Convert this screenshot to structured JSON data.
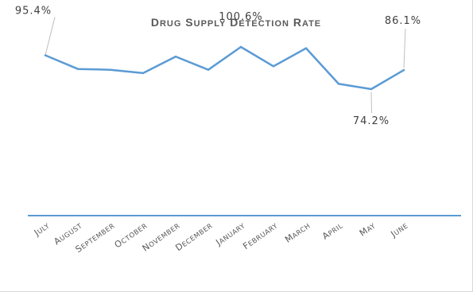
{
  "chart_data": {
    "type": "line",
    "title": "Drug Supply Detection Rate",
    "categories": [
      "July",
      "August",
      "September",
      "October",
      "November",
      "December",
      "January",
      "February",
      "March",
      "April",
      "May",
      "June"
    ],
    "series": [
      {
        "values": [
          95.4,
          86.8,
          86.3,
          84.2,
          94.6,
          86.3,
          100.6,
          88.5,
          99.8,
          77.5,
          74.2,
          86.1
        ],
        "color": "#5b9bd5"
      }
    ],
    "data_labels": [
      {
        "index": 0,
        "text": "95.4%"
      },
      {
        "index": 6,
        "text": "100.6%"
      },
      {
        "index": 10,
        "text": "74.2%"
      },
      {
        "index": 11,
        "text": "86.1%"
      }
    ],
    "ylim": [
      -5,
      130
    ],
    "grid": false,
    "legend": "none",
    "axis_color": "#5b9bd5"
  }
}
